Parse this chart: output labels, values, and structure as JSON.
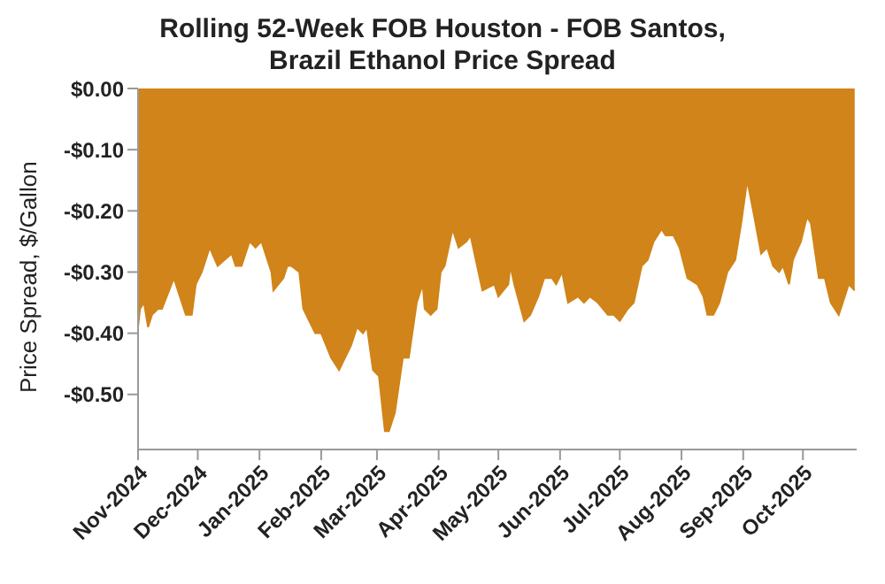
{
  "chart_data": {
    "type": "area",
    "title": "Rolling 52-Week FOB Houston - FOB Santos,\nBrazil Ethanol Price Spread",
    "ylabel": "Price Spread, $/Gallon",
    "x": [
      "2024-11-01",
      "2024-11-02",
      "2024-11-04",
      "2024-11-06",
      "2024-11-08",
      "2024-11-11",
      "2024-11-13",
      "2024-11-19",
      "2024-11-25",
      "2024-11-28",
      "2024-11-30",
      "2024-12-03",
      "2024-12-07",
      "2024-12-11",
      "2024-12-18",
      "2024-12-20",
      "2024-12-23",
      "2024-12-27",
      "2024-12-30",
      "2025-01-02",
      "2025-01-07",
      "2025-01-08",
      "2025-01-13",
      "2025-01-15",
      "2025-01-17",
      "2025-01-21",
      "2025-01-23",
      "2025-01-29",
      "2025-02-01",
      "2025-02-06",
      "2025-02-10",
      "2025-02-16",
      "2025-02-19",
      "2025-02-22",
      "2025-02-24",
      "2025-02-27",
      "2025-03-02",
      "2025-03-05",
      "2025-03-07",
      "2025-03-10",
      "2025-03-14",
      "2025-03-17",
      "2025-03-21",
      "2025-03-24",
      "2025-03-25",
      "2025-03-28",
      "2025-03-31",
      "2025-04-02",
      "2025-04-04",
      "2025-04-08",
      "2025-04-11",
      "2025-04-15",
      "2025-04-17",
      "2025-04-19",
      "2025-04-23",
      "2025-04-29",
      "2025-05-01",
      "2025-05-06",
      "2025-05-07",
      "2025-05-09",
      "2025-05-14",
      "2025-05-17",
      "2025-05-21",
      "2025-05-24",
      "2025-05-28",
      "2025-05-30",
      "2025-06-02",
      "2025-06-05",
      "2025-06-10",
      "2025-06-13",
      "2025-06-16",
      "2025-06-20",
      "2025-06-25",
      "2025-06-28",
      "2025-07-01",
      "2025-07-05",
      "2025-07-08",
      "2025-07-12",
      "2025-07-15",
      "2025-07-18",
      "2025-07-22",
      "2025-07-24",
      "2025-07-28",
      "2025-07-31",
      "2025-08-04",
      "2025-08-09",
      "2025-08-12",
      "2025-08-14",
      "2025-08-17",
      "2025-08-20",
      "2025-08-24",
      "2025-08-28",
      "2025-08-31",
      "2025-09-03",
      "2025-09-06",
      "2025-09-10",
      "2025-09-13",
      "2025-09-16",
      "2025-09-19",
      "2025-09-21",
      "2025-09-24",
      "2025-09-26",
      "2025-09-30",
      "2025-10-03",
      "2025-10-05",
      "2025-10-09",
      "2025-10-12",
      "2025-10-15",
      "2025-10-19",
      "2025-10-22",
      "2025-10-24",
      "2025-10-27"
    ],
    "series": [
      {
        "color": "#d18419",
        "values": [
          -0.39,
          -0.36,
          -0.35,
          -0.39,
          -0.37,
          -0.36,
          -0.36,
          -0.31,
          -0.37,
          -0.37,
          -0.32,
          -0.3,
          -0.26,
          -0.29,
          -0.27,
          -0.29,
          -0.29,
          -0.25,
          -0.26,
          -0.25,
          -0.3,
          -0.33,
          -0.31,
          -0.29,
          -0.29,
          -0.3,
          -0.36,
          -0.4,
          -0.4,
          -0.44,
          -0.46,
          -0.42,
          -0.39,
          -0.4,
          -0.39,
          -0.46,
          -0.47,
          -0.56,
          -0.56,
          -0.53,
          -0.44,
          -0.44,
          -0.35,
          -0.32,
          -0.36,
          -0.37,
          -0.36,
          -0.3,
          -0.29,
          -0.23,
          -0.26,
          -0.25,
          -0.24,
          -0.27,
          -0.33,
          -0.32,
          -0.34,
          -0.32,
          -0.29,
          -0.32,
          -0.38,
          -0.37,
          -0.34,
          -0.31,
          -0.31,
          -0.32,
          -0.3,
          -0.35,
          -0.34,
          -0.35,
          -0.34,
          -0.35,
          -0.37,
          -0.37,
          -0.38,
          -0.36,
          -0.35,
          -0.29,
          -0.28,
          -0.25,
          -0.23,
          -0.24,
          -0.24,
          -0.26,
          -0.31,
          -0.32,
          -0.34,
          -0.37,
          -0.37,
          -0.35,
          -0.3,
          -0.28,
          -0.22,
          -0.15,
          -0.2,
          -0.27,
          -0.26,
          -0.29,
          -0.3,
          -0.29,
          -0.32,
          -0.28,
          -0.25,
          -0.21,
          -0.22,
          -0.31,
          -0.31,
          -0.35,
          -0.37,
          -0.34,
          -0.32,
          -0.33
        ]
      }
    ],
    "xlim": [
      "2024-11-01",
      "2025-10-28"
    ],
    "xticks": [
      {
        "value": "2024-11-01",
        "label": "Nov-2024"
      },
      {
        "value": "2024-12-01",
        "label": "Dec-2024"
      },
      {
        "value": "2025-01-01",
        "label": "Jan-2025"
      },
      {
        "value": "2025-02-01",
        "label": "Feb-2025"
      },
      {
        "value": "2025-03-01",
        "label": "Mar-2025"
      },
      {
        "value": "2025-04-01",
        "label": "Apr-2025"
      },
      {
        "value": "2025-05-01",
        "label": "May-2025"
      },
      {
        "value": "2025-06-01",
        "label": "Jun-2025"
      },
      {
        "value": "2025-07-01",
        "label": "Jul-2025"
      },
      {
        "value": "2025-08-01",
        "label": "Aug-2025"
      },
      {
        "value": "2025-09-01",
        "label": "Sep-2025"
      },
      {
        "value": "2025-10-01",
        "label": "Oct-2025"
      }
    ],
    "ylim": [
      -0.59,
      0
    ],
    "yticks": [
      {
        "value": 0,
        "label": "$0.00"
      },
      {
        "value": -0.1,
        "label": "-$0.10"
      },
      {
        "value": -0.2,
        "label": "-$0.20"
      },
      {
        "value": -0.3,
        "label": "-$0.30"
      },
      {
        "value": -0.4,
        "label": "-$0.40"
      },
      {
        "value": -0.5,
        "label": "-$0.50"
      }
    ],
    "grid": false,
    "legend": false
  }
}
